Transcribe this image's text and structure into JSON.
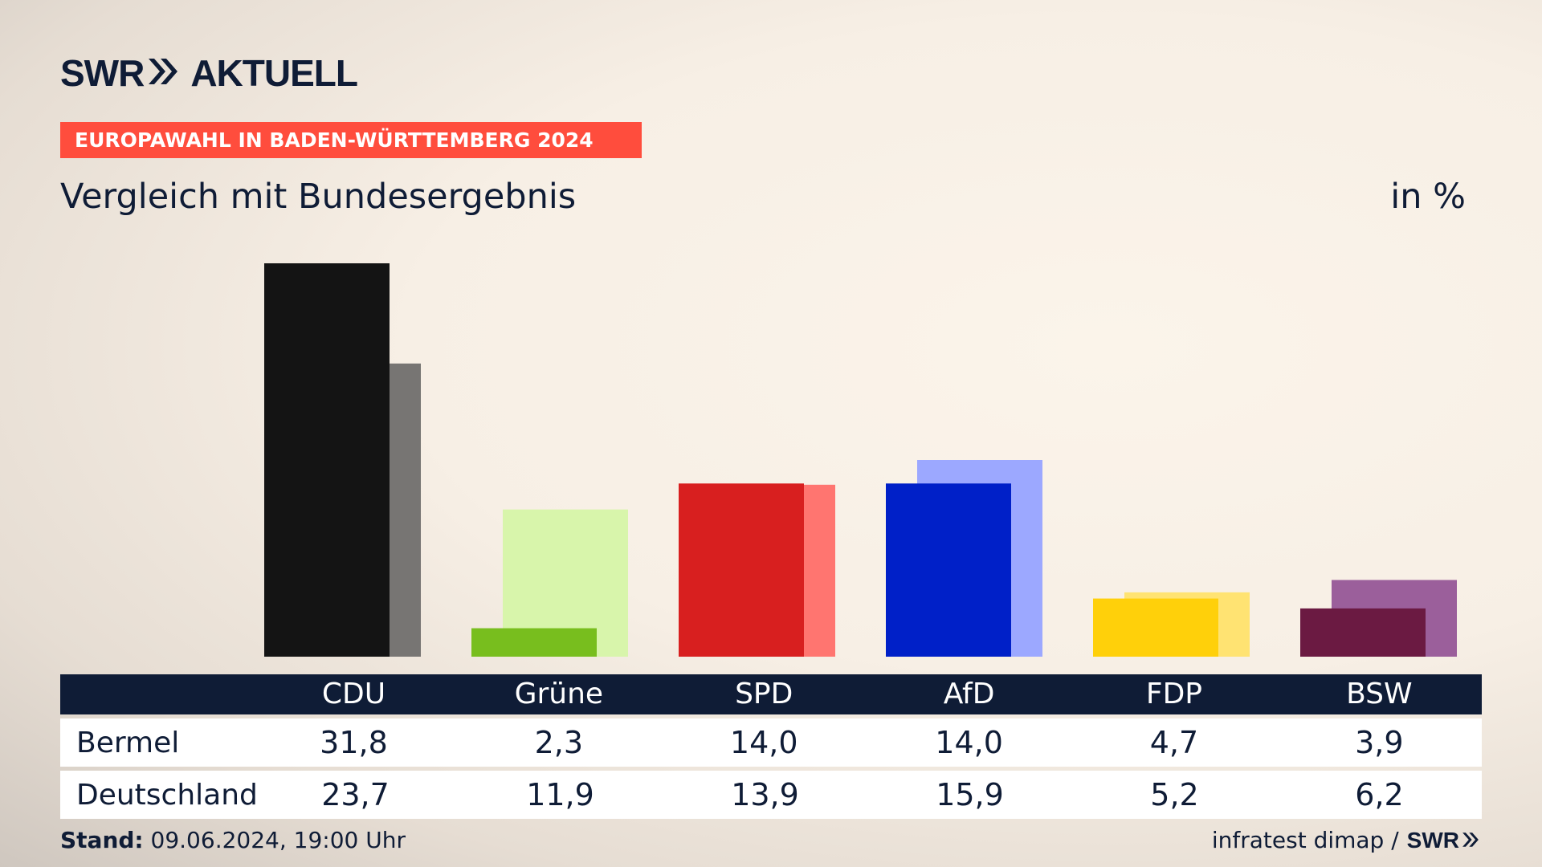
{
  "brand": {
    "swr": "SWR",
    "aktuell": "AKTUELL"
  },
  "topic": "EUROPAWAHL IN BADEN-WÜRTTEMBERG 2024",
  "subtitle": "Vergleich mit Bundesergebnis",
  "unit": "in %",
  "table": {
    "headers": [
      "CDU",
      "Grüne",
      "SPD",
      "AfD",
      "FDP",
      "BSW"
    ],
    "rows": [
      {
        "label": "Bermel",
        "values": [
          "31,8",
          "2,3",
          "14,0",
          "14,0",
          "4,7",
          "3,9"
        ]
      },
      {
        "label": "Deutschland",
        "values": [
          "23,7",
          "11,9",
          "13,9",
          "15,9",
          "5,2",
          "6,2"
        ]
      }
    ]
  },
  "footer": {
    "stand_label": "Stand:",
    "stand_value": "09.06.2024, 19:00 Uhr",
    "source": "infratest dimap /",
    "source_brand": "SWR"
  },
  "chart_data": {
    "type": "bar",
    "categories": [
      "CDU",
      "Grüne",
      "SPD",
      "AfD",
      "FDP",
      "BSW"
    ],
    "series": [
      {
        "name": "Bermel",
        "values": [
          31.8,
          2.3,
          14.0,
          14.0,
          4.7,
          3.9
        ],
        "colors": [
          "#141414",
          "#78be1e",
          "#d81f1f",
          "#0020c8",
          "#ffd00a",
          "#6b1a42"
        ]
      },
      {
        "name": "Deutschland",
        "values": [
          23.7,
          11.9,
          13.9,
          15.9,
          5.2,
          6.2
        ],
        "colors": [
          "#777573",
          "#d8f5ab",
          "#ff7570",
          "#9ca8ff",
          "#ffe372",
          "#9b5f9b"
        ]
      }
    ],
    "ylim": [
      0,
      31.8
    ]
  }
}
